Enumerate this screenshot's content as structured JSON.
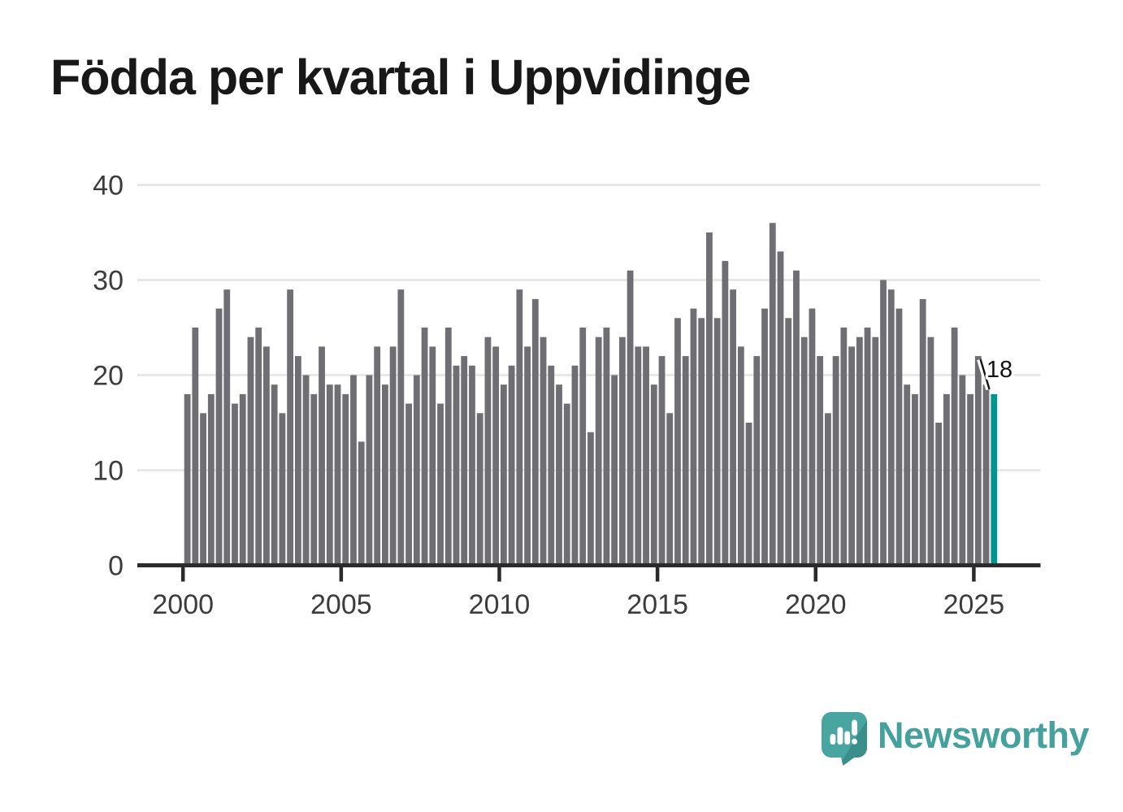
{
  "title": "Födda per kvartal i Uppvidinge",
  "annotation": {
    "label": "18"
  },
  "branding": {
    "name": "Newsworthy",
    "icon": "newsworthy-speech-bubble-chart-icon"
  },
  "colors": {
    "bar": "#6e6e73",
    "highlight": "#009690",
    "axis": "#2b2b2b",
    "grid": "#e4e4e4",
    "tick_text": "#3c3c3c",
    "annotation_text": "#151515",
    "brand_teal": "#44a19d",
    "brand_teal_dark": "#3b8f8a",
    "background": "#ffffff"
  },
  "chart_data": {
    "type": "bar",
    "title": "Födda per kvartal i Uppvidinge",
    "xlabel": "",
    "ylabel": "",
    "x_start": "2000-Q1",
    "x_end": "2025-Q3",
    "x_frequency": "quarterly",
    "x_tick_labels": [
      "2000",
      "2005",
      "2010",
      "2015",
      "2020",
      "2025"
    ],
    "y_ticks": [
      0,
      10,
      20,
      30,
      40
    ],
    "ylim": [
      0,
      40
    ],
    "grid": true,
    "legend": "none",
    "series": [
      {
        "name": "Födda per kvartal",
        "values": [
          18,
          25,
          16,
          18,
          27,
          29,
          17,
          18,
          24,
          25,
          23,
          19,
          16,
          29,
          22,
          20,
          18,
          23,
          19,
          19,
          18,
          20,
          13,
          20,
          23,
          19,
          23,
          29,
          17,
          20,
          25,
          23,
          17,
          25,
          21,
          22,
          21,
          16,
          24,
          23,
          19,
          21,
          29,
          23,
          28,
          24,
          21,
          19,
          17,
          21,
          25,
          14,
          24,
          25,
          20,
          24,
          31,
          23,
          23,
          19,
          22,
          16,
          26,
          22,
          27,
          26,
          35,
          26,
          32,
          29,
          23,
          15,
          22,
          27,
          36,
          33,
          26,
          31,
          24,
          27,
          22,
          16,
          22,
          25,
          23,
          24,
          25,
          24,
          30,
          29,
          27,
          19,
          18,
          28,
          24,
          15,
          18,
          25,
          20,
          18,
          22,
          19,
          18
        ]
      }
    ],
    "highlight_index": 102,
    "highlight_value": 18
  }
}
